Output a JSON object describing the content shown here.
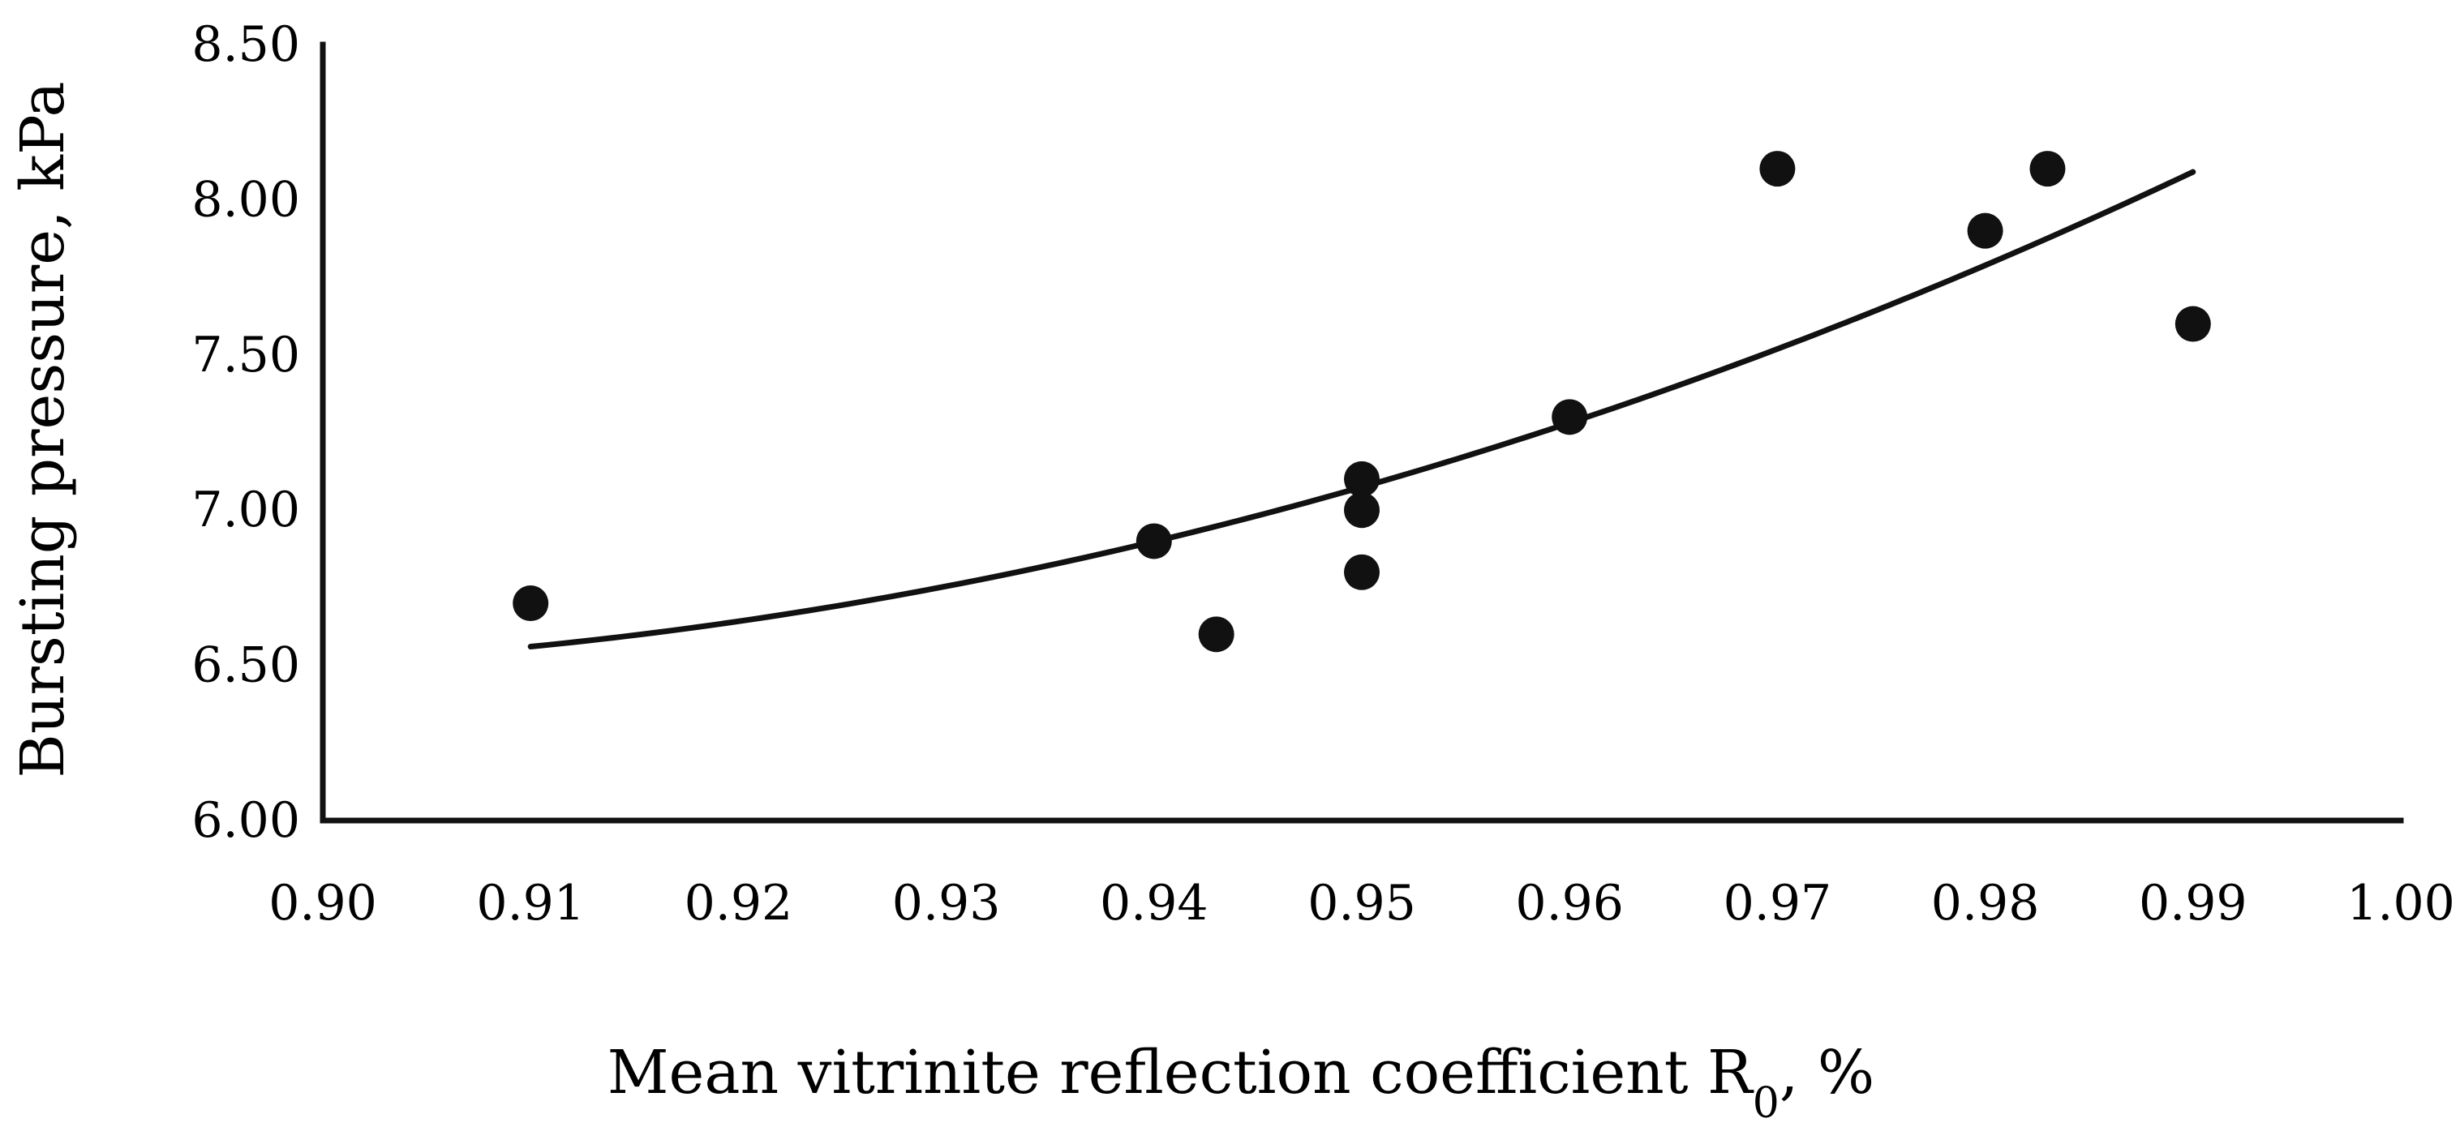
{
  "chart_data": {
    "type": "scatter",
    "title": "",
    "xlabel": "Mean vitrinite reflection coefficient R",
    "xlabel_subscript": "0",
    "xlabel_suffix": ", %",
    "ylabel": "Bursting pressure, kPa",
    "xlim": [
      0.9,
      1.0
    ],
    "ylim": [
      6.0,
      8.5
    ],
    "xticks": [
      "0.90",
      "0.91",
      "0.92",
      "0.93",
      "0.94",
      "0.95",
      "0.96",
      "0.97",
      "0.98",
      "0.99",
      "1.00"
    ],
    "yticks": [
      "6.00",
      "6.50",
      "7.00",
      "7.50",
      "8.00",
      "8.50"
    ],
    "grid": false,
    "series": [
      {
        "name": "Bursting pressure",
        "x": [
          0.91,
          0.94,
          0.943,
          0.95,
          0.95,
          0.95,
          0.96,
          0.97,
          0.98,
          0.983,
          0.99
        ],
        "y": [
          6.7,
          6.9,
          6.6,
          7.1,
          7.0,
          6.8,
          7.3,
          8.1,
          7.9,
          8.1,
          7.6
        ]
      }
    ],
    "trendline": {
      "type": "polynomial",
      "order": 2,
      "x_range": [
        0.91,
        0.99
      ],
      "points": [
        [
          0.91,
          6.56
        ],
        [
          0.94,
          6.9
        ],
        [
          0.96,
          7.28
        ],
        [
          0.99,
          8.09
        ]
      ]
    },
    "colors": {
      "marker": "#111111",
      "line": "#111111",
      "axis": "#111111"
    }
  }
}
